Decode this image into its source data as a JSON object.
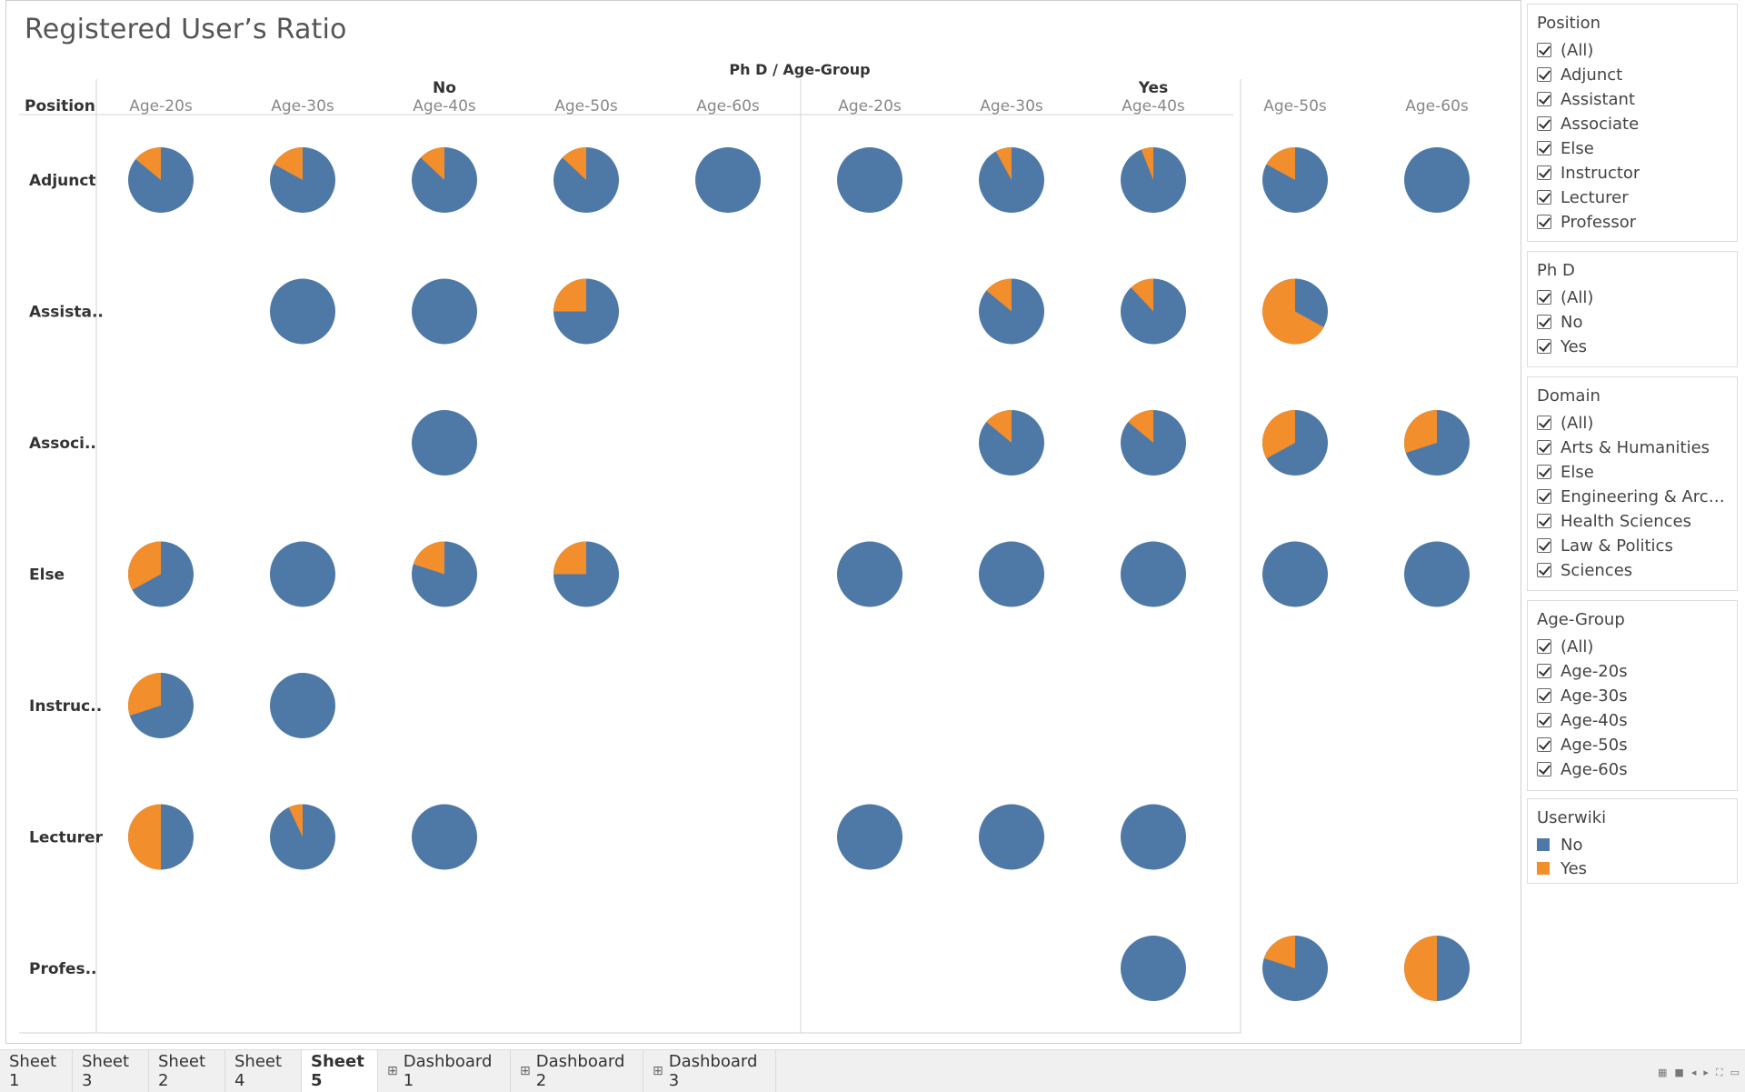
{
  "title": "Registered User’s Ratio",
  "header": {
    "column_field": "Ph D  /  Age-Group",
    "row_field": "Position"
  },
  "colors": {
    "No": "#4e79a7",
    "Yes": "#f28e2b",
    "separator": "#d3d3d3"
  },
  "chart_data": {
    "type": "pie",
    "title": "Registered User’s Ratio",
    "columns": [
      {
        "group": "No",
        "categories": [
          "Age-20s",
          "Age-30s",
          "Age-40s",
          "Age-50s",
          "Age-60s"
        ]
      },
      {
        "group": "Yes",
        "categories": [
          "Age-20s",
          "Age-30s",
          "Age-40s",
          "Age-50s",
          "Age-60s"
        ]
      }
    ],
    "rows": [
      "Adjunct",
      "Assista..",
      "Associ..",
      "Else",
      "Instruc..",
      "Lecturer",
      "Profes.."
    ],
    "legend": {
      "title": "Userwiki",
      "items": [
        "No",
        "Yes"
      ]
    },
    "value_note": "yes_share = share of Userwiki=Yes in each pie; null = no pie",
    "yes_share": [
      [
        0.14,
        0.17,
        0.13,
        0.13,
        0.0,
        0.0,
        0.08,
        0.06,
        0.17,
        0.0
      ],
      [
        null,
        0.0,
        0.0,
        0.25,
        null,
        null,
        0.14,
        0.12,
        0.67,
        null
      ],
      [
        null,
        null,
        0.0,
        null,
        null,
        null,
        0.14,
        0.14,
        0.33,
        0.3
      ],
      [
        0.33,
        0.0,
        0.2,
        0.25,
        null,
        0.0,
        0.0,
        0.0,
        0.0,
        0.0
      ],
      [
        0.3,
        0.0,
        null,
        null,
        null,
        null,
        null,
        null,
        null,
        null
      ],
      [
        0.5,
        0.07,
        0.0,
        null,
        null,
        0.0,
        0.0,
        0.0,
        null,
        null
      ],
      [
        null,
        null,
        null,
        null,
        null,
        null,
        null,
        0.0,
        0.2,
        0.5
      ]
    ]
  },
  "filters": {
    "position": {
      "title": "Position",
      "items": [
        "(All)",
        "Adjunct",
        "Assistant",
        "Associate",
        "Else",
        "Instructor",
        "Lecturer",
        "Professor"
      ]
    },
    "phd": {
      "title": "Ph D",
      "items": [
        "(All)",
        "No",
        "Yes"
      ]
    },
    "domain": {
      "title": "Domain",
      "items": [
        "(All)",
        "Arts & Humanities",
        "Else",
        "Engineering & Archit...",
        "Health Sciences",
        "Law & Politics",
        "Sciences"
      ]
    },
    "age_group": {
      "title": "Age-Group",
      "items": [
        "(All)",
        "Age-20s",
        "Age-30s",
        "Age-40s",
        "Age-50s",
        "Age-60s"
      ]
    },
    "userwiki": {
      "title": "Userwiki",
      "items": [
        "No",
        "Yes"
      ]
    }
  },
  "tabs": [
    {
      "label": "Sheet 1",
      "icon": ""
    },
    {
      "label": "Sheet 3",
      "icon": ""
    },
    {
      "label": "Sheet 2",
      "icon": ""
    },
    {
      "label": "Sheet 4",
      "icon": ""
    },
    {
      "label": "Sheet 5",
      "icon": "",
      "active": true
    },
    {
      "label": "Dashboard 1",
      "icon": "dashboard-icon"
    },
    {
      "label": "Dashboard 2",
      "icon": "dashboard-icon"
    },
    {
      "label": "Dashboard 3",
      "icon": "dashboard-icon"
    }
  ]
}
